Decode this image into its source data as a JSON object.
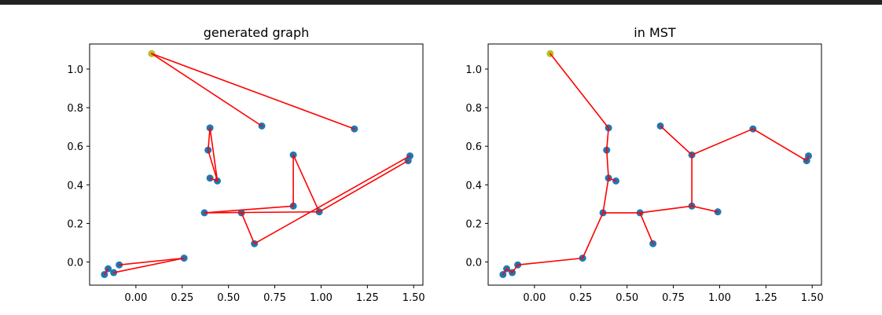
{
  "chart_data": [
    {
      "type": "scatter",
      "title": "generated graph",
      "xlabel": "",
      "ylabel": "",
      "xlim": [
        -0.25,
        1.55
      ],
      "ylim": [
        -0.12,
        1.13
      ],
      "xticks": [
        "0.00",
        "0.25",
        "0.50",
        "0.75",
        "1.00",
        "1.25",
        "1.50"
      ],
      "yticks": [
        "0.0",
        "0.2",
        "0.4",
        "0.6",
        "0.8",
        "1.0"
      ],
      "grid": false,
      "highlight_color": "#bcbd22",
      "point_color": "#1f77b4",
      "edge_color": "#ff0000",
      "points": [
        {
          "x": 0.085,
          "y": 1.08,
          "highlight": true
        },
        {
          "x": 0.68,
          "y": 0.705
        },
        {
          "x": 1.18,
          "y": 0.69
        },
        {
          "x": 0.4,
          "y": 0.695
        },
        {
          "x": 0.39,
          "y": 0.58
        },
        {
          "x": 0.4,
          "y": 0.435
        },
        {
          "x": 0.44,
          "y": 0.42
        },
        {
          "x": 0.85,
          "y": 0.555
        },
        {
          "x": 1.48,
          "y": 0.55
        },
        {
          "x": 1.47,
          "y": 0.525
        },
        {
          "x": 0.37,
          "y": 0.255
        },
        {
          "x": 0.57,
          "y": 0.255
        },
        {
          "x": 0.85,
          "y": 0.29
        },
        {
          "x": 0.99,
          "y": 0.26
        },
        {
          "x": 0.64,
          "y": 0.095
        },
        {
          "x": 0.26,
          "y": 0.02
        },
        {
          "x": -0.09,
          "y": -0.015
        },
        {
          "x": -0.15,
          "y": -0.035
        },
        {
          "x": -0.12,
          "y": -0.055
        },
        {
          "x": -0.17,
          "y": -0.065
        }
      ],
      "edges": [
        [
          0,
          1
        ],
        [
          0,
          2
        ],
        [
          3,
          4
        ],
        [
          4,
          6
        ],
        [
          3,
          6
        ],
        [
          5,
          6
        ],
        [
          7,
          12
        ],
        [
          7,
          13
        ],
        [
          10,
          12
        ],
        [
          10,
          13
        ],
        [
          11,
          14
        ],
        [
          14,
          8
        ],
        [
          13,
          9
        ],
        [
          15,
          16
        ],
        [
          15,
          18
        ],
        [
          17,
          19
        ]
      ]
    },
    {
      "type": "scatter",
      "title": "in MST",
      "xlabel": "",
      "ylabel": "",
      "xlim": [
        -0.25,
        1.55
      ],
      "ylim": [
        -0.12,
        1.13
      ],
      "xticks": [
        "0.00",
        "0.25",
        "0.50",
        "0.75",
        "1.00",
        "1.25",
        "1.50"
      ],
      "yticks": [
        "0.0",
        "0.2",
        "0.4",
        "0.6",
        "0.8",
        "1.0"
      ],
      "grid": false,
      "highlight_color": "#bcbd22",
      "point_color": "#1f77b4",
      "edge_color": "#ff0000",
      "points": [
        {
          "x": 0.085,
          "y": 1.08,
          "highlight": true
        },
        {
          "x": 0.68,
          "y": 0.705
        },
        {
          "x": 1.18,
          "y": 0.69
        },
        {
          "x": 0.4,
          "y": 0.695
        },
        {
          "x": 0.39,
          "y": 0.58
        },
        {
          "x": 0.4,
          "y": 0.435
        },
        {
          "x": 0.44,
          "y": 0.42
        },
        {
          "x": 0.85,
          "y": 0.555
        },
        {
          "x": 1.48,
          "y": 0.55
        },
        {
          "x": 1.47,
          "y": 0.525
        },
        {
          "x": 0.37,
          "y": 0.255
        },
        {
          "x": 0.57,
          "y": 0.255
        },
        {
          "x": 0.85,
          "y": 0.29
        },
        {
          "x": 0.99,
          "y": 0.26
        },
        {
          "x": 0.64,
          "y": 0.095
        },
        {
          "x": 0.26,
          "y": 0.02
        },
        {
          "x": -0.09,
          "y": -0.015
        },
        {
          "x": -0.15,
          "y": -0.035
        },
        {
          "x": -0.12,
          "y": -0.055
        },
        {
          "x": -0.17,
          "y": -0.065
        }
      ],
      "edges": [
        [
          0,
          3
        ],
        [
          3,
          4
        ],
        [
          4,
          5
        ],
        [
          5,
          6
        ],
        [
          5,
          10
        ],
        [
          10,
          11
        ],
        [
          11,
          14
        ],
        [
          11,
          12
        ],
        [
          12,
          13
        ],
        [
          12,
          7
        ],
        [
          7,
          1
        ],
        [
          7,
          2
        ],
        [
          2,
          9
        ],
        [
          9,
          8
        ],
        [
          10,
          15
        ],
        [
          15,
          16
        ],
        [
          16,
          18
        ],
        [
          18,
          17
        ],
        [
          17,
          19
        ]
      ]
    }
  ]
}
